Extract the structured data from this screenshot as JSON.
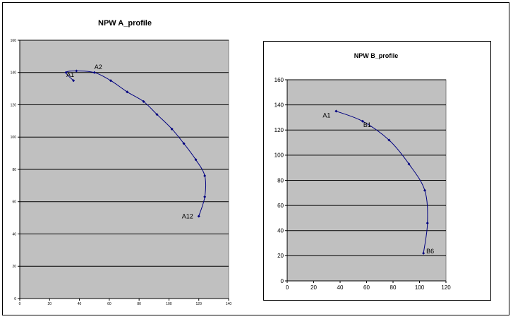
{
  "chart_data": [
    {
      "type": "scatter",
      "title": "NPW A_profile",
      "xlabel": "",
      "ylabel": "",
      "xlim": [
        0,
        140
      ],
      "ylim": [
        0,
        160
      ],
      "xticks": [
        "0",
        "20",
        "40",
        "60",
        "80",
        "100",
        "120",
        "140"
      ],
      "yticks": [
        "0",
        "20",
        "40",
        "60",
        "80",
        "100",
        "120",
        "140",
        "160"
      ],
      "grid": "horizontal",
      "series_color": "#000080",
      "plot_background": "#c0c0c0",
      "series": [
        {
          "points": [
            {
              "x": 36,
              "y": 135
            },
            {
              "x": 31,
              "y": 140
            },
            {
              "x": 38,
              "y": 141
            },
            {
              "x": 50,
              "y": 140
            },
            {
              "x": 61,
              "y": 135
            },
            {
              "x": 72,
              "y": 128
            },
            {
              "x": 83,
              "y": 122
            },
            {
              "x": 92,
              "y": 114
            },
            {
              "x": 102,
              "y": 105
            },
            {
              "x": 110,
              "y": 96
            },
            {
              "x": 118,
              "y": 86
            },
            {
              "x": 124,
              "y": 76
            },
            {
              "x": 124,
              "y": 63
            },
            {
              "x": 120,
              "y": 51
            }
          ]
        }
      ],
      "annotations": [
        {
          "text": "A1",
          "x": 36,
          "y": 135
        },
        {
          "text": "A2",
          "x": 50,
          "y": 140
        },
        {
          "text": "A12",
          "x": 120,
          "y": 51
        }
      ]
    },
    {
      "type": "scatter",
      "title": "NPW B_profile",
      "xlabel": "",
      "ylabel": "",
      "xlim": [
        0,
        120
      ],
      "ylim": [
        0,
        160
      ],
      "xticks": [
        "0",
        "20",
        "40",
        "60",
        "80",
        "100",
        "120"
      ],
      "yticks": [
        "0",
        "20",
        "40",
        "60",
        "80",
        "100",
        "120",
        "140",
        "160"
      ],
      "grid": "horizontal",
      "series_color": "#000080",
      "plot_background": "#c0c0c0",
      "series": [
        {
          "points": [
            {
              "x": 37,
              "y": 135
            },
            {
              "x": 57,
              "y": 127
            },
            {
              "x": 77,
              "y": 112
            },
            {
              "x": 92,
              "y": 93
            },
            {
              "x": 104,
              "y": 72
            },
            {
              "x": 106,
              "y": 46
            },
            {
              "x": 103,
              "y": 22
            }
          ]
        }
      ],
      "annotations": [
        {
          "text": "A1",
          "x": 37,
          "y": 135
        },
        {
          "text": "B1",
          "x": 57,
          "y": 127
        },
        {
          "text": "B6",
          "x": 103,
          "y": 22
        }
      ]
    }
  ]
}
